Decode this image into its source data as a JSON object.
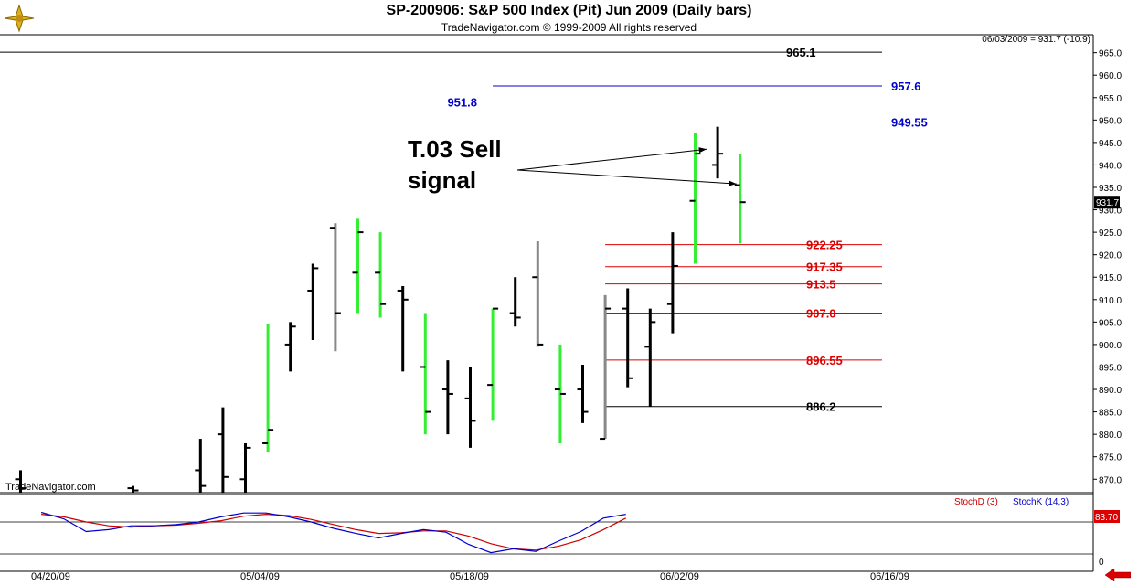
{
  "header": {
    "title": "SP-200906:  S&P 500 Index (Pit) Jun 2009  (Daily bars)",
    "subtitle": "TradeNavigator.com © 1999-2009 All rights reserved",
    "readout": "06/03/2009 = 931.7 (-10.9)",
    "watermark": "TradeNavigator.com"
  },
  "annotation": {
    "line1": "T.03 Sell",
    "line2": "signal"
  },
  "indicator": {
    "stochd_label": "StochD (3)",
    "stochk_label": "StochK (14,3)",
    "value_label": "83.70",
    "zero_label": "0"
  },
  "colors": {
    "up_bar": "#33ee33",
    "neutral_bar": "#888888",
    "down_bar": "#000000",
    "blue_level": "#0000cc",
    "red_level": "#dd0000",
    "stochd": "#cc0000",
    "stochk": "#0000cc"
  },
  "chart_data": {
    "type": "ohlc",
    "ylim": [
      867,
      969
    ],
    "yticks": [
      870,
      875,
      880,
      885,
      890,
      895,
      900,
      905,
      910,
      915,
      920,
      925,
      930,
      935,
      940,
      945,
      950,
      955,
      960,
      965
    ],
    "last_price_label": "931.7",
    "date_labels": [
      "04/20/09",
      "05/04/09",
      "05/18/09",
      "06/02/09",
      "06/16/09"
    ],
    "bars": [
      {
        "slot": 0,
        "high": 872.0,
        "low": 867,
        "open": 870.0,
        "close": 868.0,
        "color": "down"
      },
      {
        "slot": 5,
        "high": 868.5,
        "low": 867,
        "open": 868.0,
        "close": 867.5,
        "color": "down"
      },
      {
        "slot": 8,
        "high": 879.0,
        "low": 867,
        "open": 872.0,
        "close": 868.5,
        "color": "down"
      },
      {
        "slot": 9,
        "high": 886.0,
        "low": 867,
        "open": 880.0,
        "close": 870.5,
        "color": "down"
      },
      {
        "slot": 10,
        "high": 878.0,
        "low": 867,
        "open": 870.0,
        "close": 877.0,
        "color": "down"
      },
      {
        "slot": 11,
        "high": 904.5,
        "low": 876.0,
        "open": 878.0,
        "close": 881.0,
        "color": "up"
      },
      {
        "slot": 12,
        "high": 905.0,
        "low": 894.0,
        "open": 900.0,
        "close": 904.0,
        "color": "down"
      },
      {
        "slot": 13,
        "high": 918.0,
        "low": 901.0,
        "open": 912.0,
        "close": 917.0,
        "color": "down"
      },
      {
        "slot": 14,
        "high": 927.0,
        "low": 898.5,
        "open": 926.0,
        "close": 907.0,
        "color": "neutral"
      },
      {
        "slot": 15,
        "high": 928.0,
        "low": 907.0,
        "open": 916.0,
        "close": 925.0,
        "color": "up"
      },
      {
        "slot": 16,
        "high": 925.0,
        "low": 906.0,
        "open": 916.0,
        "close": 909.0,
        "color": "up"
      },
      {
        "slot": 17,
        "high": 913.0,
        "low": 894.0,
        "open": 912.0,
        "close": 910.0,
        "color": "down"
      },
      {
        "slot": 18,
        "high": 907.0,
        "low": 880.0,
        "open": 895.0,
        "close": 885.0,
        "color": "up"
      },
      {
        "slot": 19,
        "high": 896.5,
        "low": 880.0,
        "open": 890.0,
        "close": 889.0,
        "color": "down"
      },
      {
        "slot": 20,
        "high": 895.0,
        "low": 877.0,
        "open": 888.0,
        "close": 883.0,
        "color": "down"
      },
      {
        "slot": 21,
        "high": 908.0,
        "low": 883.0,
        "open": 891.0,
        "close": 908.0,
        "color": "up"
      },
      {
        "slot": 22,
        "high": 915.0,
        "low": 904.0,
        "open": 907.0,
        "close": 906.0,
        "color": "down"
      },
      {
        "slot": 23,
        "high": 923.0,
        "low": 899.5,
        "open": 915.0,
        "close": 900.0,
        "color": "neutral"
      },
      {
        "slot": 24,
        "high": 900.0,
        "low": 878.0,
        "open": 890.0,
        "close": 889.0,
        "color": "up"
      },
      {
        "slot": 25,
        "high": 895.5,
        "low": 882.5,
        "open": 890.0,
        "close": 885.0,
        "color": "down"
      },
      {
        "slot": 26,
        "high": 911.0,
        "low": 879.0,
        "open": 879.0,
        "close": 908.0,
        "color": "neutral"
      },
      {
        "slot": 27,
        "high": 912.5,
        "low": 890.5,
        "open": 908.0,
        "close": 892.5,
        "color": "down"
      },
      {
        "slot": 28,
        "high": 908.0,
        "low": 886.2,
        "open": 899.5,
        "close": 905.0,
        "color": "down"
      },
      {
        "slot": 29,
        "high": 925.0,
        "low": 902.5,
        "open": 909.0,
        "close": 917.5,
        "color": "down"
      },
      {
        "slot": 30,
        "high": 947.0,
        "low": 918.0,
        "open": 932.0,
        "close": 942.5,
        "color": "up"
      },
      {
        "slot": 31,
        "high": 948.5,
        "low": 937.0,
        "open": 940.0,
        "close": 942.5,
        "color": "down"
      },
      {
        "slot": 32,
        "high": 942.5,
        "low": 922.5,
        "open": 935.5,
        "close": 931.7,
        "color": "up"
      }
    ],
    "levels": [
      {
        "label": "965.1",
        "value": 965.1,
        "x_start_slot": -2,
        "color": "down",
        "label_side": "right"
      },
      {
        "label": "957.6",
        "value": 957.6,
        "x_start_slot": 21,
        "color": "blue",
        "label_side": "right"
      },
      {
        "label": "951.8",
        "value": 951.8,
        "x_start_slot": 21,
        "color": "blue",
        "label_side": "left"
      },
      {
        "label": "949.55",
        "value": 949.55,
        "x_start_slot": 21,
        "color": "blue",
        "label_side": "right"
      },
      {
        "label": "922.25",
        "value": 922.25,
        "x_start_slot": 26,
        "color": "red",
        "label_side": "right"
      },
      {
        "label": "917.35",
        "value": 917.35,
        "x_start_slot": 26,
        "color": "red",
        "label_side": "right"
      },
      {
        "label": "913.5",
        "value": 913.5,
        "x_start_slot": 26,
        "color": "red",
        "label_side": "right"
      },
      {
        "label": "907.0",
        "value": 907.0,
        "x_start_slot": 26,
        "color": "red",
        "label_side": "right"
      },
      {
        "label": "896.55",
        "value": 896.55,
        "x_start_slot": 26,
        "color": "red",
        "label_side": "right"
      },
      {
        "label": "886.2",
        "value": 886.2,
        "x_start_slot": 26,
        "color": "down",
        "label_side": "right"
      }
    ],
    "stochastic": {
      "ylim": [
        0,
        100
      ],
      "stochk": [
        85,
        75,
        55,
        58,
        64,
        64,
        66,
        70,
        78,
        84,
        84,
        78,
        70,
        60,
        52,
        45,
        52,
        58,
        54,
        35,
        22,
        28,
        24,
        40,
        55,
        76,
        82
      ],
      "stochd": [
        82,
        78,
        70,
        64,
        62,
        64,
        65,
        68,
        72,
        79,
        82,
        80,
        74,
        66,
        58,
        52,
        53,
        56,
        56,
        48,
        36,
        28,
        26,
        32,
        42,
        58,
        76
      ]
    }
  }
}
